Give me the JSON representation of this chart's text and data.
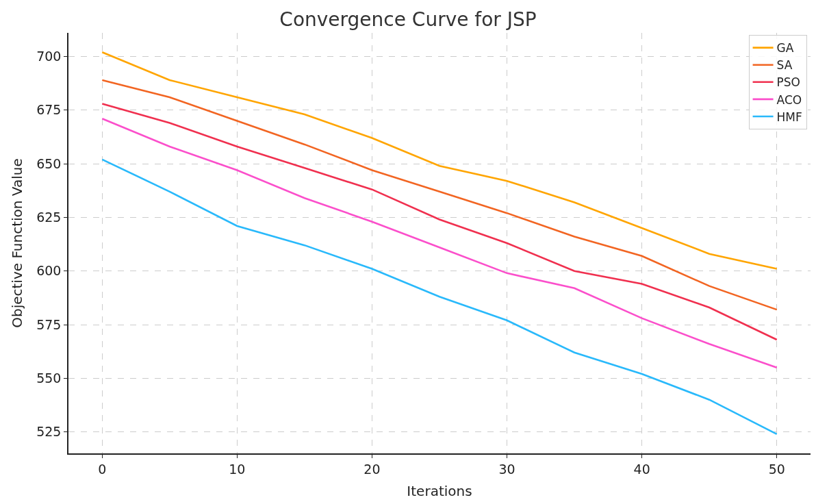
{
  "chart_data": {
    "type": "line",
    "title": "Convergence Curve for JSP",
    "xlabel": "Iterations",
    "ylabel": "Objective Function Value",
    "x": [
      0,
      5,
      10,
      15,
      20,
      25,
      30,
      35,
      40,
      45,
      50
    ],
    "series": [
      {
        "name": "GA",
        "color": "#ffa500",
        "values": [
          702,
          689,
          681,
          673,
          662,
          649,
          642,
          632,
          620,
          608,
          601
        ]
      },
      {
        "name": "SA",
        "color": "#f26522",
        "values": [
          689,
          681,
          670,
          659,
          647,
          637,
          627,
          616,
          607,
          593,
          582
        ]
      },
      {
        "name": "PSO",
        "color": "#f0304f",
        "values": [
          678,
          669,
          658,
          648,
          638,
          624,
          613,
          600,
          594,
          583,
          568
        ]
      },
      {
        "name": "ACO",
        "color": "#fb4fcb",
        "values": [
          671,
          658,
          647,
          634,
          623,
          611,
          599,
          592,
          578,
          566,
          555
        ]
      },
      {
        "name": "HMF",
        "color": "#29b9fb",
        "values": [
          652,
          637,
          621,
          612,
          601,
          588,
          577,
          562,
          552,
          540,
          524
        ]
      }
    ],
    "xlim": [
      -2.5,
      52.5
    ],
    "ylim": [
      515,
      711
    ],
    "xticks": [
      0,
      10,
      20,
      30,
      40,
      50
    ],
    "yticks": [
      525,
      550,
      575,
      600,
      625,
      650,
      675,
      700
    ],
    "grid": true,
    "legend": "top right",
    "line_style": "solid",
    "marker": "none"
  }
}
